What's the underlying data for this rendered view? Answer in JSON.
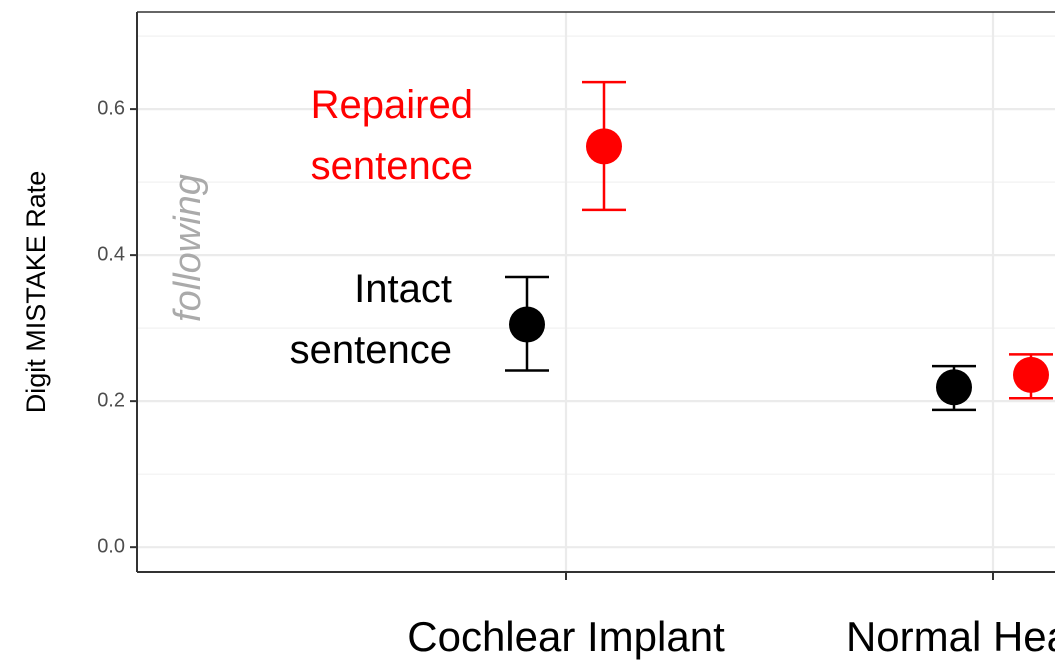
{
  "chart_data": {
    "type": "errorpoint",
    "y_label": "Digit MISTAKE Rate",
    "categories": [
      "Cochlear Implant",
      "Normal Hearing"
    ],
    "series": [
      {
        "name": "Intact sentence",
        "color": "#000000",
        "values": [
          0.305,
          0.219
        ],
        "lower": [
          0.242,
          0.188
        ],
        "upper": [
          0.37,
          0.248
        ]
      },
      {
        "name": "Repaired sentence",
        "color": "#ff0000",
        "values": [
          0.549,
          0.236
        ],
        "lower": [
          0.462,
          0.204
        ],
        "upper": [
          0.637,
          0.264
        ]
      }
    ],
    "annotations": [
      "following"
    ],
    "ylim": [
      -0.034,
      0.733
    ],
    "yticks": [
      {
        "value": 0,
        "label": "0.0"
      },
      0.2,
      0.4,
      0.6
    ],
    "minor_yticks": [
      0.1,
      0.3,
      0.5,
      0.7
    ],
    "grid": true
  }
}
